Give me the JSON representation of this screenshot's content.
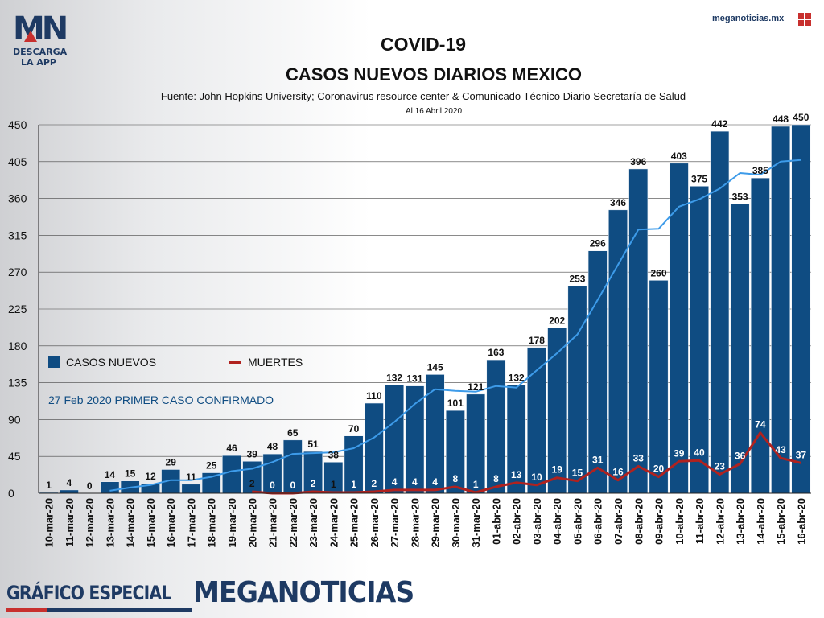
{
  "branding": {
    "logo_text": "MN",
    "logo_sub": "DESCARGA LA APP",
    "site": "meganoticias.mx",
    "footer_left": "GRÁFICO ESPECIAL",
    "footer_right": "MEGANOTICIAS",
    "colors": {
      "navy": "#1e3a63",
      "red": "#c8302e"
    }
  },
  "header": {
    "title": "COVID-19",
    "subtitle": "CASOS NUEVOS DIARIOS MEXICO",
    "source": "Fuente: John Hopkins University; Coronavirus resource center & Comunicado Técnico Diario Secretaría de Salud",
    "date": "Al 16 Abril 2020"
  },
  "legend": {
    "cases": "CASOS NUEVOS",
    "deaths": "MUERTES"
  },
  "annotation": "27 Feb 2020 PRIMER CASO CONFIRMADO",
  "chart_data": {
    "type": "bar",
    "categories": [
      "10-mar-20",
      "11-mar-20",
      "12-mar-20",
      "13-mar-20",
      "14-mar-20",
      "15-mar-20",
      "16-mar-20",
      "17-mar-20",
      "18-mar-20",
      "19-mar-20",
      "20-mar-20",
      "21-mar-20",
      "22-mar-20",
      "23-mar-20",
      "24-mar-20",
      "25-mar-20",
      "26-mar-20",
      "27-mar-20",
      "28-mar-20",
      "29-mar-20",
      "30-mar-20",
      "31-mar-20",
      "01-abr-20",
      "02-abr-20",
      "03-abr-20",
      "04-abr-20",
      "05-abr-20",
      "06-abr-20",
      "07-abr-20",
      "08-abr-20",
      "09-abr-20",
      "10-abr-20",
      "11-abr-20",
      "12-abr-20",
      "13-abr-20",
      "14-abr-20",
      "15-abr-20",
      "16-abr-20"
    ],
    "series": [
      {
        "name": "CASOS NUEVOS",
        "type": "bar",
        "color": "#0f4c82",
        "values": [
          1,
          4,
          0,
          14,
          15,
          12,
          29,
          11,
          25,
          46,
          39,
          48,
          65,
          51,
          38,
          70,
          110,
          132,
          131,
          145,
          101,
          121,
          163,
          132,
          178,
          202,
          253,
          296,
          346,
          396,
          260,
          403,
          375,
          442,
          353,
          385,
          448,
          450
        ]
      },
      {
        "name": "MUERTES",
        "type": "line",
        "color": "#b0221f",
        "values": [
          null,
          null,
          null,
          null,
          null,
          null,
          null,
          null,
          null,
          null,
          2,
          0,
          0,
          2,
          1,
          1,
          2,
          4,
          4,
          4,
          8,
          1,
          8,
          13,
          10,
          19,
          15,
          31,
          16,
          33,
          20,
          39,
          40,
          23,
          36,
          74,
          43,
          37
        ]
      },
      {
        "type": "line",
        "color": "#3d9be9",
        "values": [
          null,
          null,
          null,
          3,
          7,
          10,
          16,
          16,
          20,
          27,
          30,
          38,
          48,
          49,
          50,
          55,
          68,
          87,
          109,
          127,
          125,
          124,
          131,
          129,
          150,
          171,
          194,
          236,
          279,
          322,
          323,
          350,
          359,
          372,
          391,
          389,
          405,
          407
        ]
      }
    ],
    "yticks": [
      0,
      45,
      90,
      135,
      180,
      225,
      270,
      315,
      360,
      405,
      450
    ],
    "ylim": [
      0,
      450
    ]
  }
}
